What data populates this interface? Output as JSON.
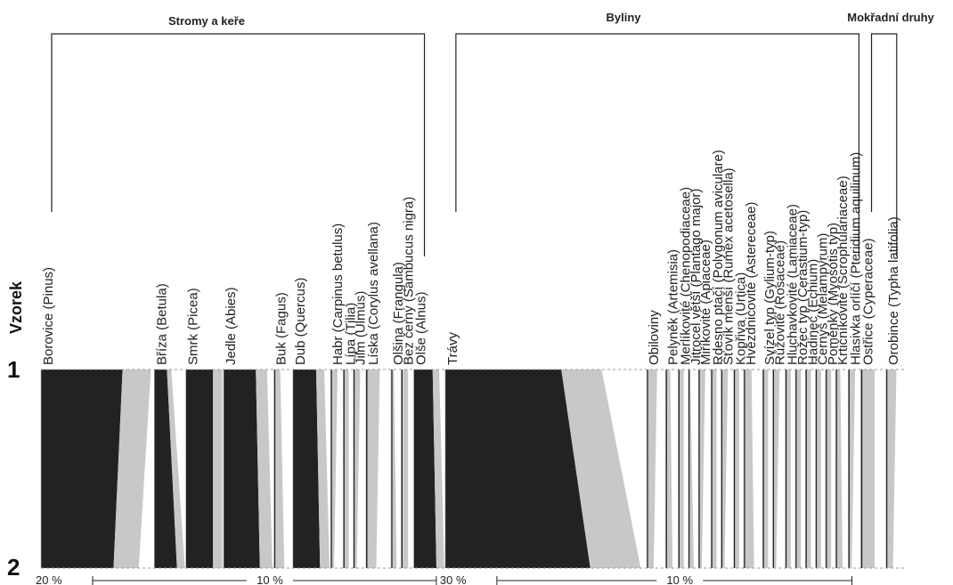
{
  "chart_data": {
    "type": "area",
    "ylabel": "Vzorek",
    "samples": [
      "1",
      "2"
    ],
    "groups": [
      {
        "name": "Stromy a keře"
      },
      {
        "name": "Byliny"
      },
      {
        "name": "Mokřadní druhy"
      }
    ],
    "scales": [
      {
        "min_label": "20 %",
        "max_label": "10 %"
      },
      {
        "min_label": "30 %",
        "max_label": "10 %"
      }
    ],
    "colors": {
      "dark": "#222222",
      "mid": "#c8c8c8",
      "light": "#ffffff",
      "guide": "#b0b0b0"
    },
    "taxa": [
      {
        "name": "Borovice (Pinus)",
        "group": 0,
        "sample1": 18,
        "sample2": 16
      },
      {
        "name": "Bříza (Betula)",
        "group": 0,
        "sample1": 5,
        "sample2": 9
      },
      {
        "name": "Smrk (Picea)",
        "group": 0,
        "sample1": 6,
        "sample2": 6
      },
      {
        "name": "Jedle (Abies)",
        "group": 0,
        "sample1": 8,
        "sample2": 9
      },
      {
        "name": "Buk (Fagus)",
        "group": 0,
        "sample1": 3,
        "sample2": 5
      },
      {
        "name": "Dub (Quercus)",
        "group": 0,
        "sample1": 6,
        "sample2": 7
      },
      {
        "name": "Habr (Carpinus betulus)",
        "group": 0,
        "sample1": 2,
        "sample2": 1
      },
      {
        "name": "Lípa (Tilia)",
        "group": 0,
        "sample1": 1,
        "sample2": 1
      },
      {
        "name": "Jilm (Ulmus)",
        "group": 0,
        "sample1": 2,
        "sample2": 1
      },
      {
        "name": "Líska (Corylus avellana)",
        "group": 0,
        "sample1": 4,
        "sample2": 3
      },
      {
        "name": "Olšina (Frangula)",
        "group": 0,
        "sample1": 1,
        "sample2": 2
      },
      {
        "name": "Bez černý (Sambucus nigra)",
        "group": 0,
        "sample1": 2,
        "sample2": 2
      },
      {
        "name": "Olše (Alnus)",
        "group": 0,
        "sample1": 5,
        "sample2": 6
      },
      {
        "name": "Trávy",
        "group": 1,
        "sample1": 32,
        "sample2": 40
      },
      {
        "name": "Obiloviny",
        "group": 1,
        "sample1": 3,
        "sample2": 2
      },
      {
        "name": "Pelyněk (Artemisia)",
        "group": 1,
        "sample1": 2,
        "sample2": 3
      },
      {
        "name": "Merlíkovité (Chenopodiaceae)",
        "group": 1,
        "sample1": 1,
        "sample2": 1
      },
      {
        "name": "Jitrocel větší (Plantago major)",
        "group": 1,
        "sample1": 1,
        "sample2": 3
      },
      {
        "name": "Miříkovité (Apiaceae)",
        "group": 1,
        "sample1": 2,
        "sample2": 1
      },
      {
        "name": "Rdesno ptačí (Polygonum aviculare)",
        "group": 1,
        "sample1": 1,
        "sample2": 1
      },
      {
        "name": "Šťovík menší (Rumex acetosella)",
        "group": 1,
        "sample1": 2,
        "sample2": 1
      },
      {
        "name": "Kopřiva (Urtica)",
        "group": 1,
        "sample1": 1,
        "sample2": 1
      },
      {
        "name": "Hvězdnicovité (Astereceae)",
        "group": 1,
        "sample1": 3,
        "sample2": 4
      },
      {
        "name": "Svízel typ (Gylium-typ)",
        "group": 1,
        "sample1": 1,
        "sample2": 1
      },
      {
        "name": "Růžovité (Rosaceae)",
        "group": 1,
        "sample1": 2,
        "sample2": 1
      },
      {
        "name": "Hluchavkovité (Lamiaceae)",
        "group": 1,
        "sample1": 1,
        "sample2": 1
      },
      {
        "name": "Rožec typ (Cerastium-typ)",
        "group": 1,
        "sample1": 1,
        "sample2": 1
      },
      {
        "name": "Hadinec (Echium)",
        "group": 1,
        "sample1": 1,
        "sample2": 1
      },
      {
        "name": "Černýš (Melampyrum)",
        "group": 1,
        "sample1": 1,
        "sample2": 1
      },
      {
        "name": "Poměnky (Myosotis typ)",
        "group": 1,
        "sample1": 1,
        "sample2": 1
      },
      {
        "name": "Krtičníkovité (Scrophulariaceae)",
        "group": 1,
        "sample1": 2,
        "sample2": 3
      },
      {
        "name": "Hlasivka orlíčí (Pteridium aquilinum)",
        "group": 1,
        "sample1": 2,
        "sample2": 1
      },
      {
        "name": "Ostřice (Cyperaceae)",
        "group": 2,
        "sample1": 4,
        "sample2": 4
      },
      {
        "name": "Orobince (Typha latifolia)",
        "group": 2,
        "sample1": 3,
        "sample2": 2
      }
    ]
  }
}
